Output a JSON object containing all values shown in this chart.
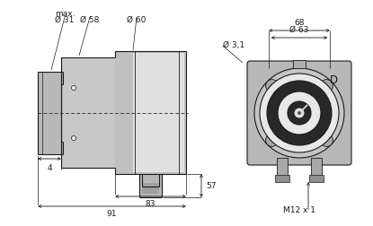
{
  "bg_color": "#ffffff",
  "lc": "#1a1a1a",
  "fs": 6.5,
  "fs_small": 5.5,
  "gray1": "#c8c8c8",
  "gray2": "#a8a8a8",
  "gray3": "#d8d8d8",
  "dark": "#303030",
  "white": "#ffffff",
  "labels": {
    "max": "max.",
    "d31": "Ø 31",
    "d58": "Ø 58",
    "d60": "Ø 60",
    "d31_note": "Ø 3,1",
    "d63": "Ø 63",
    "d68": "68",
    "d57": "57",
    "d4": "4",
    "d83": "83",
    "d91": "91",
    "D": "D",
    "M12": "M12 x 1"
  }
}
